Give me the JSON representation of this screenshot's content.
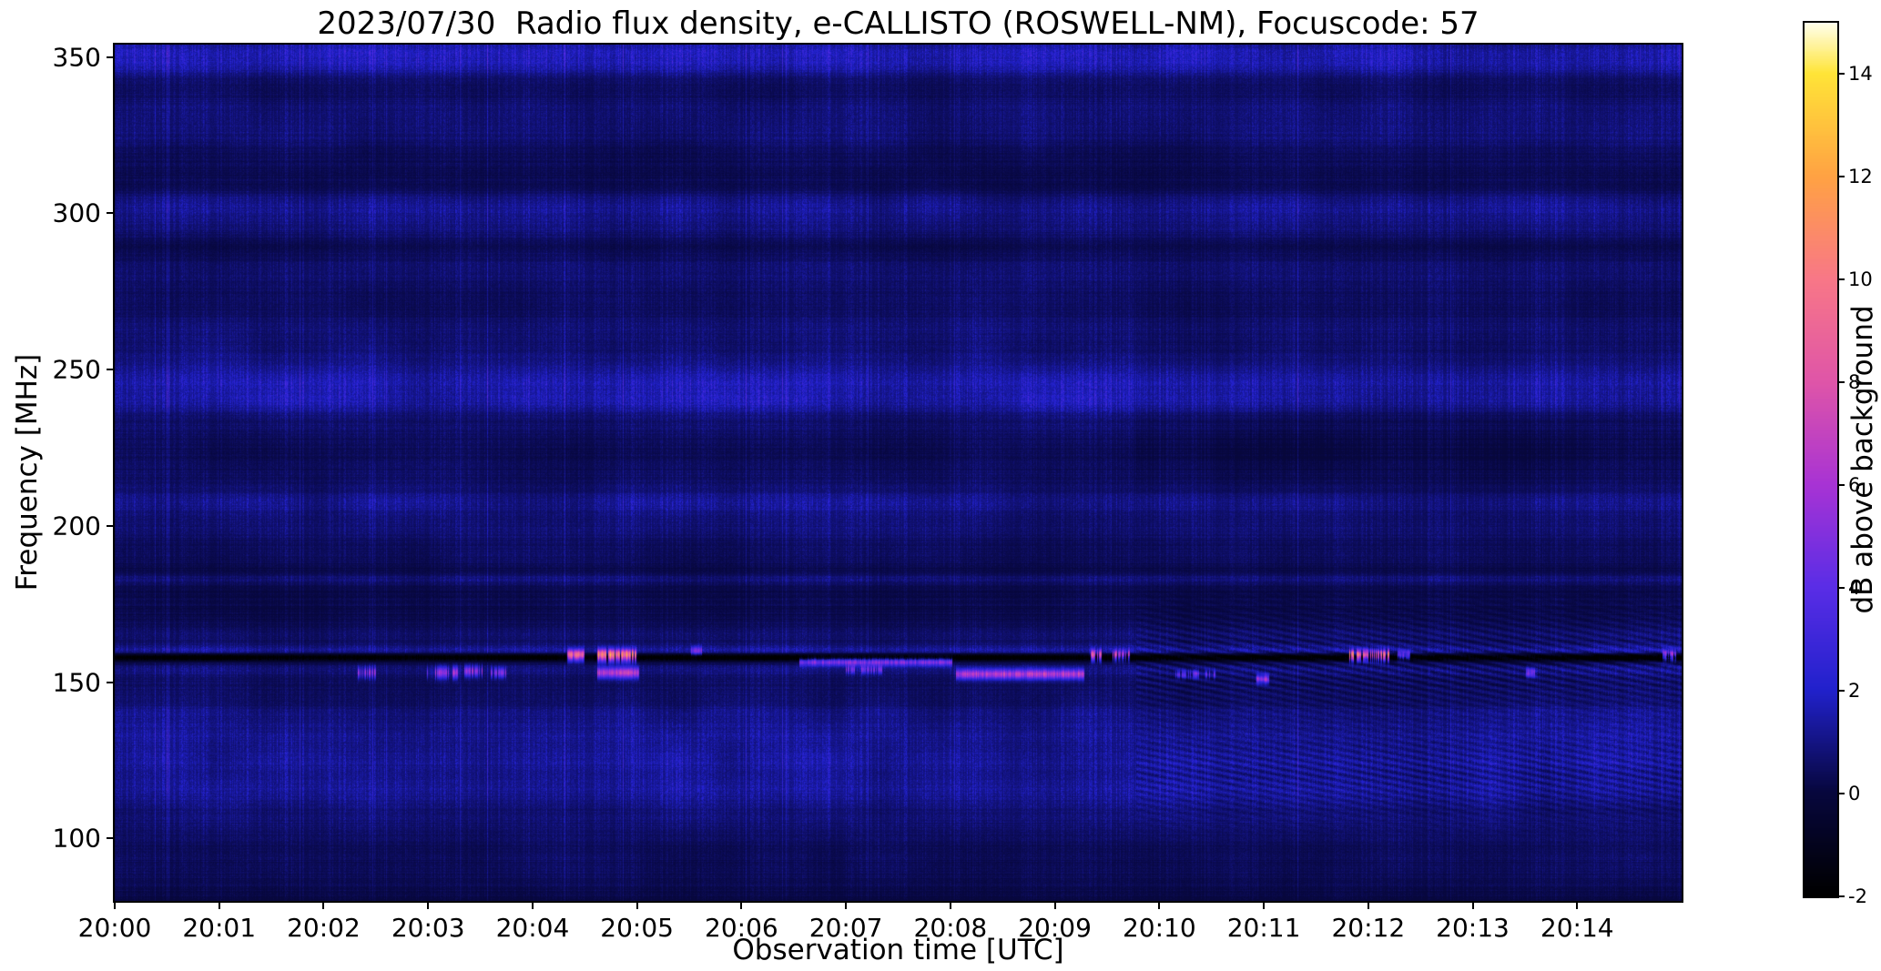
{
  "chart_data": {
    "type": "heatmap",
    "title": "2023/07/30  Radio flux density, e-CALLISTO (ROSWELL-NM), Focuscode: 57",
    "xlabel": "Observation time [UTC]",
    "ylabel": "Frequency [MHz]",
    "x_tick_labels": [
      "20:00",
      "20:01",
      "20:02",
      "20:03",
      "20:04",
      "20:05",
      "20:06",
      "20:07",
      "20:08",
      "20:09",
      "20:10",
      "20:11",
      "20:12",
      "20:13",
      "20:14"
    ],
    "x_range_minutes": [
      0,
      15
    ],
    "y_tick_values": [
      350,
      300,
      250,
      200,
      150,
      100
    ],
    "y_range": [
      80,
      354
    ],
    "grid": false,
    "legend": "colorbar-right",
    "colorbar": {
      "label": "dB above background",
      "ticks": [
        14,
        12,
        10,
        8,
        6,
        4,
        2,
        0,
        -2
      ],
      "range": [
        -2,
        15
      ],
      "colormap_stops": [
        [
          -2,
          "#000000"
        ],
        [
          0,
          "#07073d"
        ],
        [
          2,
          "#2121cc"
        ],
        [
          4,
          "#5a2de6"
        ],
        [
          6,
          "#a833d4"
        ],
        [
          8,
          "#df55a8"
        ],
        [
          10,
          "#f87787"
        ],
        [
          12,
          "#ffa243"
        ],
        [
          14,
          "#ffe437"
        ],
        [
          15,
          "#ffffee"
        ]
      ]
    },
    "background_noise_db_range": [
      -0.5,
      2.5
    ],
    "segment_change_min": 9.78,
    "bands": [
      {
        "f": 352,
        "w": 3.5,
        "amp": 1.9
      },
      {
        "f": 347,
        "w": 2.5,
        "amp": 1.2
      },
      {
        "f": 341,
        "w": 3,
        "amp": 0.5
      },
      {
        "f": 334,
        "w": 3,
        "amp": 0.8
      },
      {
        "f": 326,
        "w": 4,
        "amp": 0.9
      },
      {
        "f": 315,
        "w": 5,
        "amp": 0.35
      },
      {
        "f": 302,
        "w": 3.5,
        "amp": 1.4
      },
      {
        "f": 295,
        "w": 3,
        "amp": 0.8
      },
      {
        "f": 281,
        "w": 5,
        "amp": 0.9
      },
      {
        "f": 270,
        "w": 4,
        "amp": 0.4
      },
      {
        "f": 262,
        "w": 4,
        "amp": 0.9
      },
      {
        "f": 252,
        "w": 4,
        "amp": 1.1
      },
      {
        "f": 245,
        "w": 3.5,
        "amp": 1.8
      },
      {
        "f": 239,
        "w": 2.5,
        "amp": 1.4
      },
      {
        "f": 232,
        "w": 3,
        "amp": 0.7
      },
      {
        "f": 224,
        "w": 4,
        "amp": 0.35
      },
      {
        "f": 215,
        "w": 4,
        "amp": 0.6
      },
      {
        "f": 207,
        "w": 3,
        "amp": 1.3
      },
      {
        "f": 199,
        "w": 3,
        "amp": 0.9
      },
      {
        "f": 191,
        "w": 3,
        "amp": 0.6
      },
      {
        "f": 183,
        "w": 1.5,
        "amp": 0.9
      },
      {
        "f": 176,
        "w": 4,
        "amp": 0.3
      },
      {
        "f": 165,
        "w": 3,
        "amp": 0.8
      },
      {
        "f": 160,
        "w": 1.2,
        "amp": 1.7
      },
      {
        "f": 158,
        "w": 0.9,
        "amp": -3.5
      },
      {
        "f": 154,
        "w": 2,
        "amp": 0.9
      },
      {
        "f": 148,
        "w": 3,
        "amp": 0.6
      },
      {
        "f": 140,
        "w": 3,
        "amp": 1.0
      },
      {
        "f": 133,
        "w": 3.5,
        "amp": 1.4
      },
      {
        "f": 125,
        "w": 3.5,
        "amp": 1.5
      },
      {
        "f": 116,
        "w": 4,
        "amp": 1.6
      },
      {
        "f": 106,
        "w": 4,
        "amp": 0.8
      },
      {
        "f": 96,
        "w": 5,
        "amp": 0.5
      },
      {
        "f": 86,
        "w": 4,
        "amp": 0.3
      }
    ],
    "bursts": [
      {
        "t0": 2.33,
        "t1": 2.5,
        "f": 153,
        "fw": 1.2,
        "amp": 5.5,
        "gap": 0.3
      },
      {
        "t0": 2.98,
        "t1": 3.3,
        "f": 153,
        "fw": 1.3,
        "amp": 6.5,
        "gap": 0.35
      },
      {
        "t0": 3.35,
        "t1": 3.52,
        "f": 153.5,
        "fw": 1.2,
        "amp": 6.0,
        "gap": 0.2
      },
      {
        "t0": 3.6,
        "t1": 3.75,
        "f": 153,
        "fw": 1.1,
        "amp": 5.5,
        "gap": 0.3
      },
      {
        "t0": 4.33,
        "t1": 4.5,
        "f": 158.5,
        "fw": 1.2,
        "amp": 11.5,
        "gap": 0.25
      },
      {
        "t0": 4.62,
        "t1": 5.0,
        "f": 158.5,
        "fw": 1.3,
        "amp": 14.5,
        "gap": 0.15
      },
      {
        "t0": 4.62,
        "t1": 5.02,
        "f": 153,
        "fw": 1.2,
        "amp": 7.0,
        "gap": 0
      },
      {
        "t0": 5.52,
        "t1": 5.62,
        "f": 160,
        "fw": 1.0,
        "amp": 4.5,
        "gap": 0
      },
      {
        "t0": 6.55,
        "t1": 8.02,
        "f": 156.5,
        "fw": 0.9,
        "amp": 6.0,
        "gap": 0
      },
      {
        "t0": 7.0,
        "t1": 7.35,
        "f": 154,
        "fw": 0.9,
        "amp": 4.5,
        "gap": 0.3
      },
      {
        "t0": 8.05,
        "t1": 9.28,
        "f": 152.5,
        "fw": 1.1,
        "amp": 7.0,
        "gap": 0
      },
      {
        "t0": 9.33,
        "t1": 9.45,
        "f": 158.5,
        "fw": 1.2,
        "amp": 11.0,
        "gap": 0.2
      },
      {
        "t0": 9.55,
        "t1": 9.72,
        "f": 158.5,
        "fw": 1.1,
        "amp": 9.0,
        "gap": 0.3
      },
      {
        "t0": 10.15,
        "t1": 10.55,
        "f": 152.5,
        "fw": 0.9,
        "amp": 4.5,
        "gap": 0.5
      },
      {
        "t0": 10.92,
        "t1": 11.05,
        "f": 151,
        "fw": 1.0,
        "amp": 6.0,
        "gap": 0.2
      },
      {
        "t0": 11.82,
        "t1": 12.2,
        "f": 158.5,
        "fw": 1.2,
        "amp": 13.0,
        "gap": 0.35
      },
      {
        "t0": 12.28,
        "t1": 12.4,
        "f": 158.5,
        "fw": 1.0,
        "amp": 6.0,
        "gap": 0.3
      },
      {
        "t0": 13.5,
        "t1": 13.62,
        "f": 153,
        "fw": 1.0,
        "amp": 5.0,
        "gap": 0.3
      },
      {
        "t0": 14.82,
        "t1": 14.95,
        "f": 158.5,
        "fw": 1.1,
        "amp": 7.5,
        "gap": 0.2
      }
    ]
  }
}
